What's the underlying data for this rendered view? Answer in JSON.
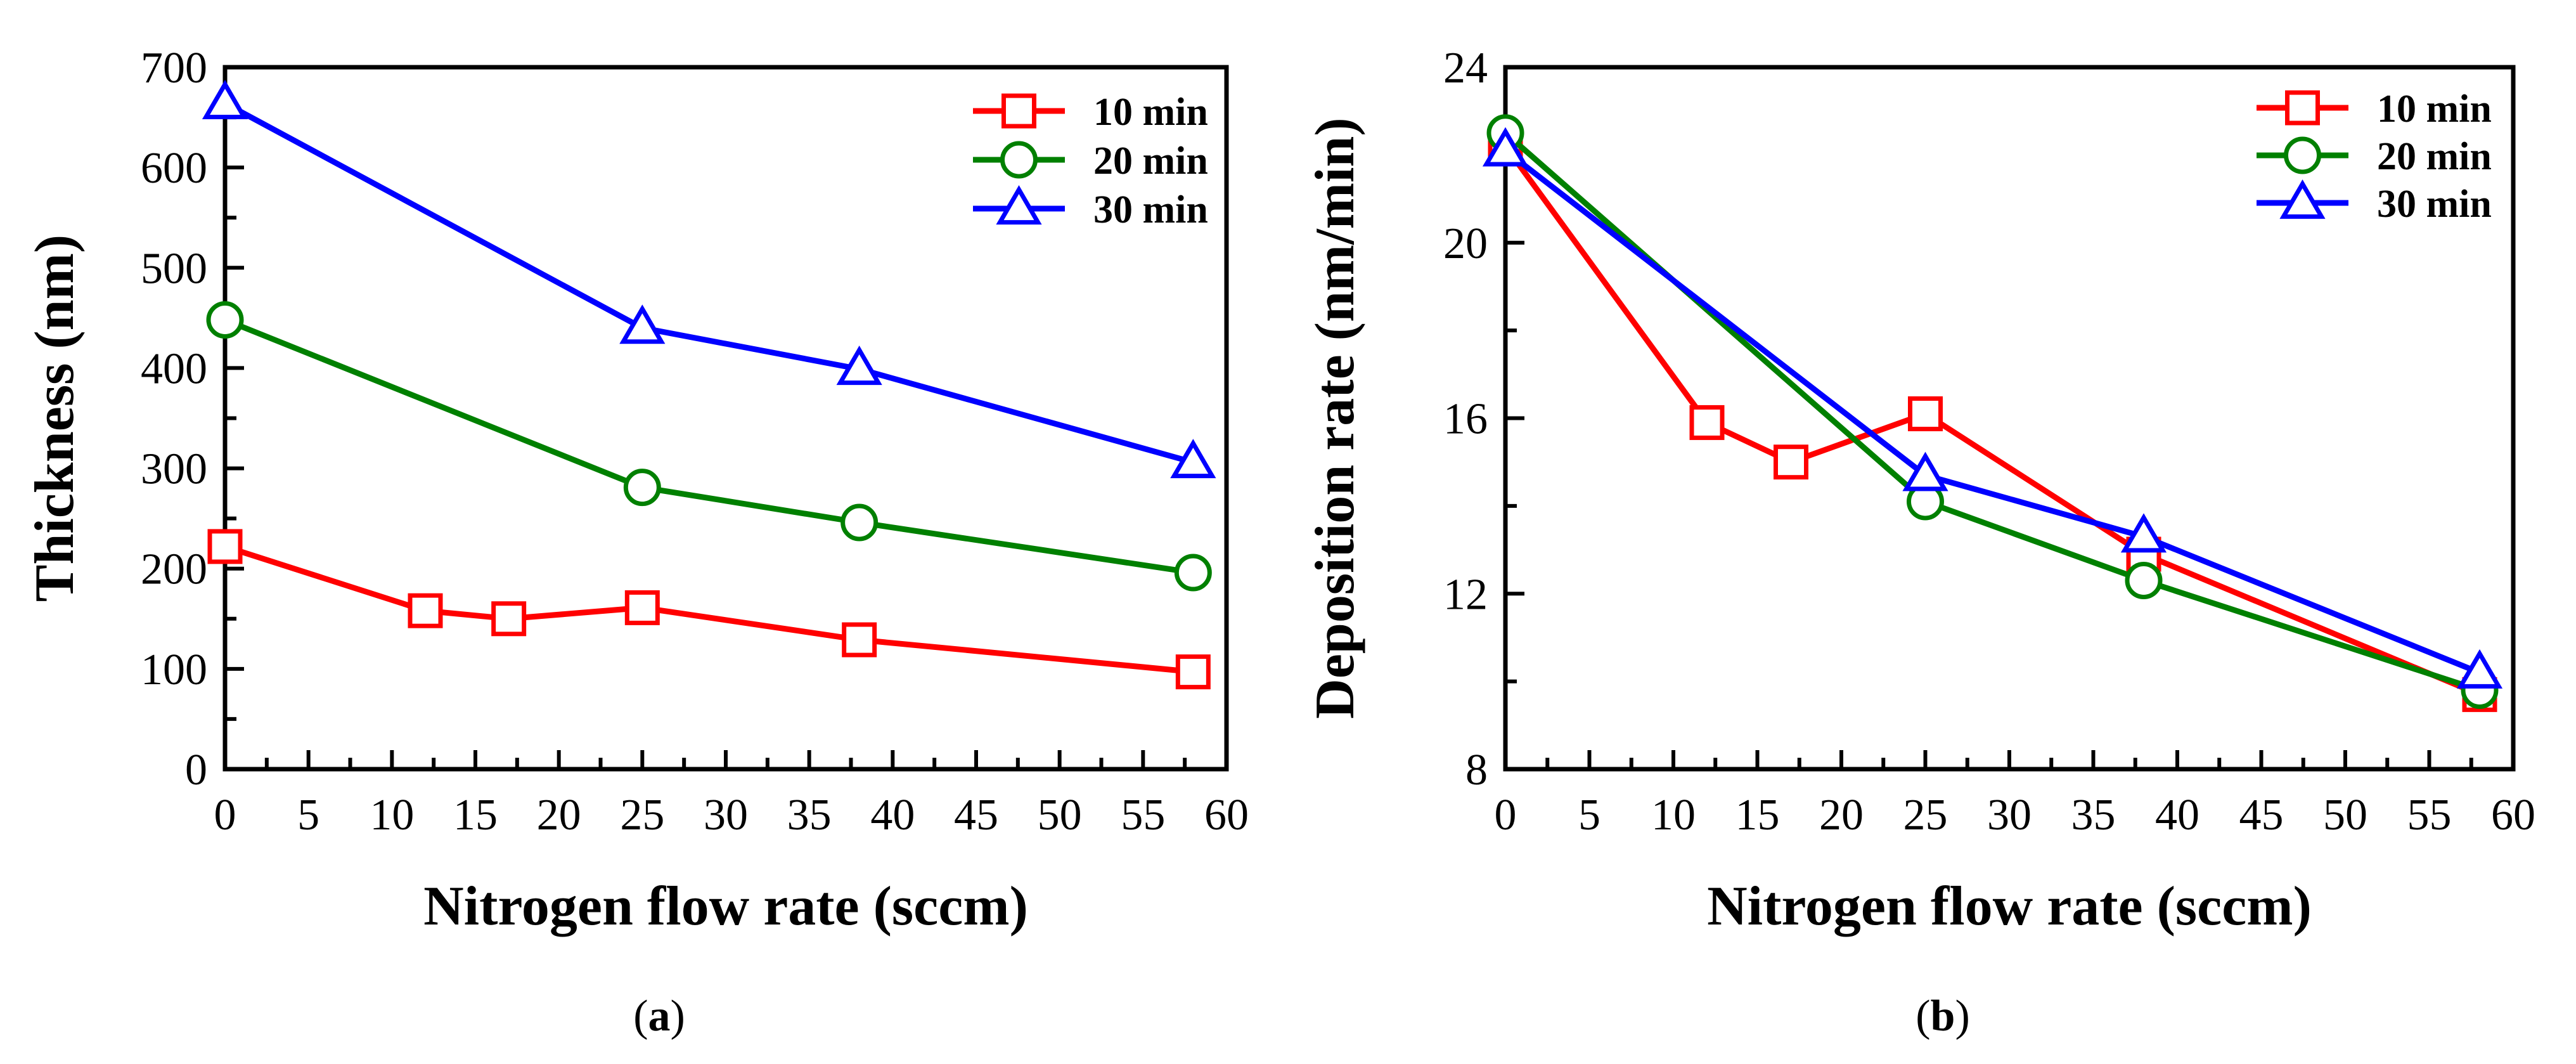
{
  "chart_data": [
    {
      "type": "line",
      "panel_label": "a",
      "xlabel": "Nitrogen flow rate (sccm)",
      "ylabel": "Thickness (nm)",
      "xlim": [
        0,
        60
      ],
      "ylim": [
        0,
        700
      ],
      "xticks": [
        0,
        5,
        10,
        15,
        20,
        25,
        30,
        35,
        40,
        45,
        50,
        55,
        60
      ],
      "yticks": [
        0,
        100,
        200,
        300,
        400,
        500,
        600,
        700
      ],
      "legend_position": "top-right",
      "series": [
        {
          "name": "10 min",
          "color": "#ff0000",
          "marker": "square",
          "x": [
            0,
            12,
            17,
            25,
            38,
            58
          ],
          "y": [
            222,
            158,
            150,
            161,
            129,
            97
          ]
        },
        {
          "name": "20 min",
          "color": "#008000",
          "marker": "circle",
          "x": [
            0,
            25,
            38,
            58
          ],
          "y": [
            448,
            281,
            246,
            196
          ]
        },
        {
          "name": "30 min",
          "color": "#0000ff",
          "marker": "triangle",
          "x": [
            0,
            25,
            38,
            58
          ],
          "y": [
            664,
            440,
            399,
            306
          ]
        }
      ]
    },
    {
      "type": "line",
      "panel_label": "b",
      "xlabel": "Nitrogen flow rate (sccm)",
      "ylabel": "Deposition rate (nm/min)",
      "xlim": [
        0,
        60
      ],
      "ylim": [
        8,
        24
      ],
      "xticks": [
        0,
        5,
        10,
        15,
        20,
        25,
        30,
        35,
        40,
        45,
        50,
        55,
        60
      ],
      "yticks": [
        8,
        12,
        16,
        20,
        24
      ],
      "legend_position": "top-right",
      "series": [
        {
          "name": "10 min",
          "color": "#ff0000",
          "marker": "square",
          "x": [
            0,
            12,
            17,
            25,
            38,
            58
          ],
          "y": [
            22.2,
            15.9,
            15.0,
            16.1,
            12.9,
            9.7
          ]
        },
        {
          "name": "20 min",
          "color": "#008000",
          "marker": "circle",
          "x": [
            0,
            25,
            38,
            58
          ],
          "y": [
            22.5,
            14.1,
            12.3,
            9.8
          ]
        },
        {
          "name": "30 min",
          "color": "#0000ff",
          "marker": "triangle",
          "x": [
            0,
            25,
            38,
            58
          ],
          "y": [
            22.1,
            14.7,
            13.3,
            10.2
          ]
        }
      ]
    }
  ]
}
